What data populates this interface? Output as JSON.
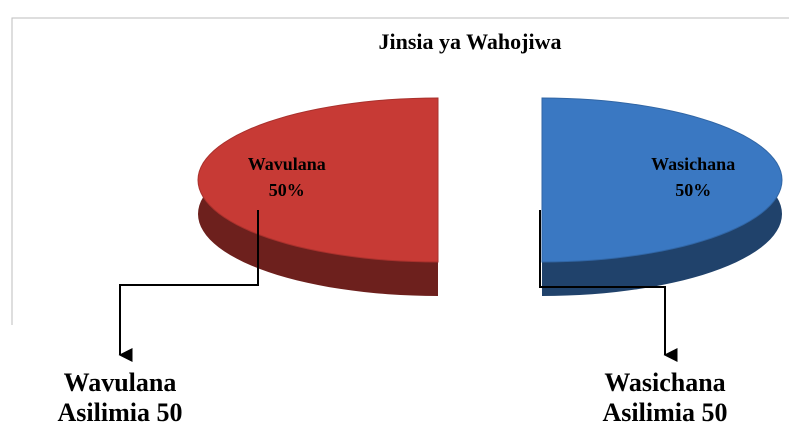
{
  "chart_data": {
    "type": "pie",
    "title": "Jinsia ya Wahojiwa",
    "categories": [
      "Wavulana",
      "Wasichana"
    ],
    "values": [
      50,
      50
    ],
    "value_labels": [
      "50%",
      "50%"
    ],
    "colors": [
      "#c73a35",
      "#3a78c2"
    ],
    "annotations": [
      [
        "Wavulana",
        "Asilimia 50"
      ],
      [
        "Wasichana",
        "Asilimia 50"
      ]
    ]
  }
}
